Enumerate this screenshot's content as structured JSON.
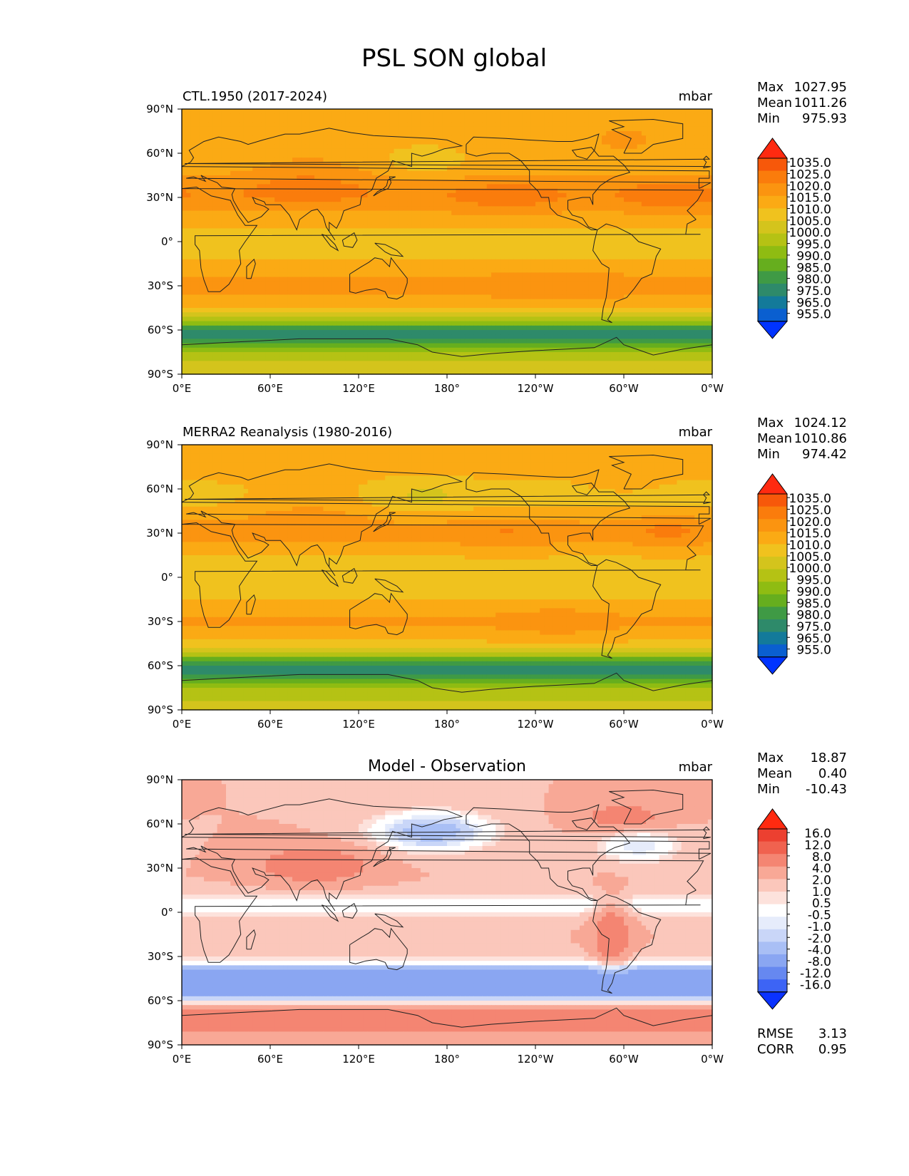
{
  "figure_title": "PSL SON global",
  "colors": {
    "abs_scale": [
      "#0033ff",
      "#0a5fd0",
      "#137a9a",
      "#2e8a6a",
      "#3f9a45",
      "#66ae1e",
      "#8fbc12",
      "#b5c214",
      "#d4c41c",
      "#f0c21e",
      "#fbaa14",
      "#fb9410",
      "#fa7c0c",
      "#f7580a",
      "#ff2a10"
    ],
    "diff_scale": [
      "#0a32ff",
      "#3d64f5",
      "#6688f0",
      "#8aa6f2",
      "#a9bff5",
      "#c9d6f8",
      "#e6ecfb",
      "#ffffff",
      "#fde2dc",
      "#fbc7bb",
      "#f8a896",
      "#f48572",
      "#f0624f",
      "#ec4030",
      "#ff2a10"
    ],
    "coast": "#222222",
    "land_overlay": "#000000"
  },
  "chart_data": [
    {
      "type": "heatmap",
      "name": "ctl",
      "title": "CTL.1950 (2017-2024)",
      "units": "mbar",
      "stats": [
        {
          "label": "Max",
          "value": "1027.95"
        },
        {
          "label": "Mean",
          "value": "1011.26"
        },
        {
          "label": "Min",
          "value": "975.93"
        }
      ],
      "xticks": [
        "0°E",
        "60°E",
        "120°E",
        "180°",
        "120°W",
        "60°W",
        "0°W"
      ],
      "yticks": [
        "90°N",
        "60°N",
        "30°N",
        "0°",
        "30°S",
        "60°S",
        "90°S"
      ],
      "xrange": [
        0,
        360
      ],
      "yrange": [
        -90,
        90
      ],
      "levels": [
        "1035.0",
        "1025.0",
        "1020.0",
        "1015.0",
        "1010.0",
        "1005.0",
        "1000.0",
        "995.0",
        "990.0",
        "985.0",
        "980.0",
        "975.0",
        "965.0",
        "955.0"
      ],
      "scale": "abs"
    },
    {
      "type": "heatmap",
      "name": "obs",
      "title": "MERRA2 Reanalysis (1980-2016)",
      "units": "mbar",
      "stats": [
        {
          "label": "Max",
          "value": "1024.12"
        },
        {
          "label": "Mean",
          "value": "1010.86"
        },
        {
          "label": "Min",
          "value": "974.42"
        }
      ],
      "xticks": [
        "0°E",
        "60°E",
        "120°E",
        "180°",
        "120°W",
        "60°W",
        "0°W"
      ],
      "yticks": [
        "90°N",
        "60°N",
        "30°N",
        "0°",
        "30°S",
        "60°S",
        "90°S"
      ],
      "xrange": [
        0,
        360
      ],
      "yrange": [
        -90,
        90
      ],
      "levels": [
        "1035.0",
        "1025.0",
        "1020.0",
        "1015.0",
        "1010.0",
        "1005.0",
        "1000.0",
        "995.0",
        "990.0",
        "985.0",
        "980.0",
        "975.0",
        "965.0",
        "955.0"
      ],
      "scale": "abs"
    },
    {
      "type": "heatmap",
      "name": "diff",
      "title": "Model - Observation",
      "units": "mbar",
      "stats": [
        {
          "label": "Max",
          "value": "18.87"
        },
        {
          "label": "Mean",
          "value": "0.40"
        },
        {
          "label": "Min",
          "value": "-10.43"
        }
      ],
      "xticks": [
        "0°E",
        "60°E",
        "120°E",
        "180°",
        "120°W",
        "60°W",
        "0°W"
      ],
      "yticks": [
        "90°N",
        "60°N",
        "30°N",
        "0°",
        "30°S",
        "60°S",
        "90°S"
      ],
      "xrange": [
        0,
        360
      ],
      "yrange": [
        -90,
        90
      ],
      "levels": [
        "16.0",
        "12.0",
        "8.0",
        "4.0",
        "2.0",
        "1.0",
        "0.5",
        "-0.5",
        "-1.0",
        "-2.0",
        "-4.0",
        "-8.0",
        "-12.0",
        "-16.0"
      ],
      "scale": "diff",
      "metrics": [
        {
          "label": "RMSE",
          "value": "3.13"
        },
        {
          "label": "CORR",
          "value": "0.95"
        }
      ]
    }
  ]
}
